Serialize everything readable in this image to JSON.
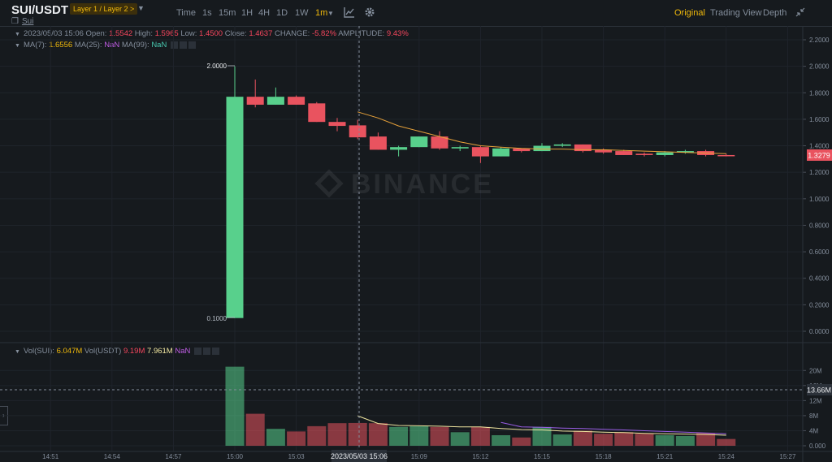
{
  "header": {
    "pair": "SUI/USDT",
    "tag": "Layer 1 / Layer 2 >",
    "coin_name": "Sui",
    "intervals": [
      "Time",
      "1s",
      "15m",
      "1H",
      "4H",
      "1D",
      "1W",
      "1m"
    ],
    "active_interval": "1m",
    "views": [
      "Original",
      "Trading View",
      "Depth"
    ],
    "active_view": "Original"
  },
  "info": {
    "date": "2023/05/03 15:06",
    "open_label": "Open:",
    "open": "1.5542",
    "high_label": "High:",
    "high": "1.5965",
    "low_label": "Low:",
    "low": "1.4500",
    "close_label": "Close:",
    "close": "1.4637",
    "change_label": "CHANGE:",
    "change": "-5.82%",
    "amp_label": "AMPLITUDE:",
    "amp": "9.43%",
    "ma7_label": "MA(7):",
    "ma7": "1.6556",
    "ma25_label": "MA(25):",
    "ma25": "NaN",
    "ma99_label": "MA(99):",
    "ma99": "NaN",
    "vol_sui_label": "Vol(SUI):",
    "vol_sui": "6.047M",
    "vol_usdt_label": "Vol(USDT)",
    "vol_usdt": "9.19M",
    "vol_ma1": "7.961M",
    "vol_ma2": "NaN"
  },
  "watermark": "BINANCE",
  "colors": {
    "up": "#58d08c",
    "down": "#e9535f",
    "ma7": "#f0b90b",
    "ma25": "#9a5ee6",
    "bg": "#161a1e",
    "grid": "#1f242b"
  },
  "crosshair_time": "2023/05/03 15:06",
  "chart_data": {
    "type": "candlestick",
    "price_axis": {
      "ylim": [
        0,
        2.2
      ],
      "ticks": [
        "2.2000",
        "2.0000",
        "1.8000",
        "1.6000",
        "1.4000",
        "1.2000",
        "1.0000",
        "0.8000",
        "0.6000",
        "0.4000",
        "0.2000",
        "0.0000"
      ]
    },
    "volume_axis": {
      "ylim": [
        0,
        22
      ],
      "unit": "M",
      "ticks": [
        "20M",
        "16M",
        "12M",
        "8M",
        "4M",
        "0.000"
      ]
    },
    "x_ticks": [
      "14:51",
      "14:54",
      "14:57",
      "15:00",
      "15:03",
      "15:06",
      "15:09",
      "15:12",
      "15:15",
      "15:18",
      "15:21",
      "15:24",
      "15:27"
    ],
    "last_price": "1.3279",
    "volume_marker": "13.66M",
    "max_label": "2.0000",
    "min_label": "0.1000",
    "candles": [
      {
        "time": "15:00",
        "o": 0.1,
        "h": 2.0,
        "l": 0.1,
        "c": 1.77,
        "v": 21.0
      },
      {
        "time": "15:01",
        "o": 1.77,
        "h": 1.9,
        "l": 1.69,
        "c": 1.71,
        "v": 8.5
      },
      {
        "time": "15:02",
        "o": 1.71,
        "h": 1.84,
        "l": 1.71,
        "c": 1.77,
        "v": 4.5
      },
      {
        "time": "15:03",
        "o": 1.77,
        "h": 1.78,
        "l": 1.71,
        "c": 1.71,
        "v": 3.8
      },
      {
        "time": "15:04",
        "o": 1.72,
        "h": 1.73,
        "l": 1.58,
        "c": 1.58,
        "v": 5.2
      },
      {
        "time": "15:05",
        "o": 1.58,
        "h": 1.61,
        "l": 1.51,
        "c": 1.55,
        "v": 6.0
      },
      {
        "time": "15:06",
        "o": 1.5542,
        "h": 1.5965,
        "l": 1.45,
        "c": 1.4637,
        "v": 6.05
      },
      {
        "time": "15:07",
        "o": 1.47,
        "h": 1.5,
        "l": 1.37,
        "c": 1.37,
        "v": 6.0
      },
      {
        "time": "15:08",
        "o": 1.37,
        "h": 1.4,
        "l": 1.32,
        "c": 1.39,
        "v": 5.0
      },
      {
        "time": "15:09",
        "o": 1.39,
        "h": 1.47,
        "l": 1.39,
        "c": 1.47,
        "v": 5.2
      },
      {
        "time": "15:10",
        "o": 1.47,
        "h": 1.51,
        "l": 1.37,
        "c": 1.38,
        "v": 5.0
      },
      {
        "time": "15:11",
        "o": 1.38,
        "h": 1.4,
        "l": 1.36,
        "c": 1.39,
        "v": 3.6
      },
      {
        "time": "15:12",
        "o": 1.39,
        "h": 1.4,
        "l": 1.27,
        "c": 1.32,
        "v": 5.0
      },
      {
        "time": "15:13",
        "o": 1.32,
        "h": 1.39,
        "l": 1.32,
        "c": 1.38,
        "v": 2.8
      },
      {
        "time": "15:14",
        "o": 1.38,
        "h": 1.38,
        "l": 1.35,
        "c": 1.36,
        "v": 2.2
      },
      {
        "time": "15:15",
        "o": 1.36,
        "h": 1.42,
        "l": 1.36,
        "c": 1.4,
        "v": 5.0
      },
      {
        "time": "15:16",
        "o": 1.4,
        "h": 1.42,
        "l": 1.39,
        "c": 1.41,
        "v": 3.0
      },
      {
        "time": "15:17",
        "o": 1.41,
        "h": 1.41,
        "l": 1.35,
        "c": 1.36,
        "v": 4.0
      },
      {
        "time": "15:18",
        "o": 1.37,
        "h": 1.38,
        "l": 1.34,
        "c": 1.35,
        "v": 3.2
      },
      {
        "time": "15:19",
        "o": 1.36,
        "h": 1.37,
        "l": 1.33,
        "c": 1.33,
        "v": 3.6
      },
      {
        "time": "15:20",
        "o": 1.34,
        "h": 1.35,
        "l": 1.32,
        "c": 1.33,
        "v": 3.2
      },
      {
        "time": "15:21",
        "o": 1.33,
        "h": 1.36,
        "l": 1.32,
        "c": 1.35,
        "v": 2.8
      },
      {
        "time": "15:22",
        "o": 1.35,
        "h": 1.37,
        "l": 1.34,
        "c": 1.36,
        "v": 2.6
      },
      {
        "time": "15:23",
        "o": 1.36,
        "h": 1.37,
        "l": 1.32,
        "c": 1.33,
        "v": 3.4
      },
      {
        "time": "15:24",
        "o": 1.33,
        "h": 1.34,
        "l": 1.32,
        "c": 1.3279,
        "v": 1.8
      }
    ],
    "ma7": [
      {
        "time": "15:06",
        "value": 1.6556
      },
      {
        "time": "15:07",
        "value": 1.61
      },
      {
        "time": "15:08",
        "value": 1.55
      },
      {
        "time": "15:09",
        "value": 1.51
      },
      {
        "time": "15:10",
        "value": 1.47
      },
      {
        "time": "15:11",
        "value": 1.43
      },
      {
        "time": "15:12",
        "value": 1.4
      },
      {
        "time": "15:13",
        "value": 1.39
      },
      {
        "time": "15:14",
        "value": 1.38
      },
      {
        "time": "15:15",
        "value": 1.375
      },
      {
        "time": "15:16",
        "value": 1.375
      },
      {
        "time": "15:17",
        "value": 1.37
      },
      {
        "time": "15:18",
        "value": 1.37
      },
      {
        "time": "15:19",
        "value": 1.365
      },
      {
        "time": "15:20",
        "value": 1.36
      },
      {
        "time": "15:21",
        "value": 1.355
      },
      {
        "time": "15:22",
        "value": 1.35
      },
      {
        "time": "15:23",
        "value": 1.345
      },
      {
        "time": "15:24",
        "value": 1.34
      }
    ],
    "vol_ma1": [
      {
        "time": "15:06",
        "value": 7.961
      },
      {
        "time": "15:07",
        "value": 5.9
      },
      {
        "time": "15:08",
        "value": 5.4
      },
      {
        "time": "15:09",
        "value": 5.3
      },
      {
        "time": "15:10",
        "value": 5.2
      },
      {
        "time": "15:11",
        "value": 5.0
      },
      {
        "time": "15:12",
        "value": 5.0
      },
      {
        "time": "15:13",
        "value": 4.6
      },
      {
        "time": "15:14",
        "value": 4.3
      },
      {
        "time": "15:15",
        "value": 4.2
      },
      {
        "time": "15:16",
        "value": 3.9
      },
      {
        "time": "15:17",
        "value": 3.8
      },
      {
        "time": "15:18",
        "value": 3.6
      },
      {
        "time": "15:19",
        "value": 3.5
      },
      {
        "time": "15:20",
        "value": 3.3
      },
      {
        "time": "15:21",
        "value": 3.2
      },
      {
        "time": "15:22",
        "value": 3.1
      },
      {
        "time": "15:23",
        "value": 3.0
      },
      {
        "time": "15:24",
        "value": 2.8
      }
    ],
    "vol_ma2": [
      {
        "time": "15:13",
        "value": 6.2
      },
      {
        "time": "15:14",
        "value": 5.0
      },
      {
        "time": "15:15",
        "value": 4.9
      },
      {
        "time": "15:16",
        "value": 4.7
      },
      {
        "time": "15:17",
        "value": 4.6
      },
      {
        "time": "15:18",
        "value": 4.4
      },
      {
        "time": "15:19",
        "value": 4.2
      },
      {
        "time": "15:20",
        "value": 4.0
      },
      {
        "time": "15:21",
        "value": 3.8
      },
      {
        "time": "15:22",
        "value": 3.6
      },
      {
        "time": "15:23",
        "value": 3.4
      },
      {
        "time": "15:24",
        "value": 3.2
      }
    ]
  }
}
